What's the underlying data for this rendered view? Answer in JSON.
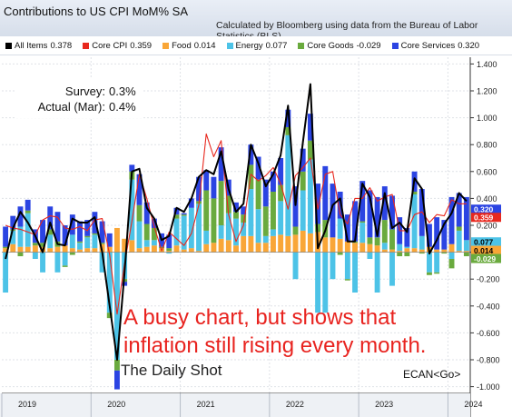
{
  "header": {
    "title": "Contributions to US CPI MoM% SA",
    "source": "Calculated by Bloomberg using data from the Bureau of Labor Statistics (BLS)"
  },
  "legend": [
    {
      "label": "All Items",
      "value": "0.378",
      "color": "#000000"
    },
    {
      "label": "Core CPI",
      "value": "0.359",
      "color": "#e8281e"
    },
    {
      "label": "Food",
      "value": "0.014",
      "color": "#f9a637"
    },
    {
      "label": "Energy",
      "value": "0.077",
      "color": "#4dc3e7"
    },
    {
      "label": "Core Goods",
      "value": "-0.029",
      "color": "#6aaa3e"
    },
    {
      "label": "Core Services",
      "value": "0.320",
      "color": "#2b44e2"
    }
  ],
  "stats_box": {
    "survey_label": "Survey:",
    "survey_value": "0.3%",
    "actual_label": "Actual (Mar):",
    "actual_value": "0.4%"
  },
  "annotation": {
    "line1": "A busy chart, but shows that",
    "line2": "inflation still rising every month."
  },
  "watermark": "The Daily Shot",
  "ecan": "ECAN<Go>",
  "chart_data": {
    "type": "bar",
    "stacked": true,
    "categories": [
      "2019-01",
      "2019-02",
      "2019-03",
      "2019-04",
      "2019-05",
      "2019-06",
      "2019-07",
      "2019-08",
      "2019-09",
      "2019-10",
      "2019-11",
      "2019-12",
      "2020-01",
      "2020-02",
      "2020-03",
      "2020-04",
      "2020-05",
      "2020-06",
      "2020-07",
      "2020-08",
      "2020-09",
      "2020-10",
      "2020-11",
      "2020-12",
      "2021-01",
      "2021-02",
      "2021-03",
      "2021-04",
      "2021-05",
      "2021-06",
      "2021-07",
      "2021-08",
      "2021-09",
      "2021-10",
      "2021-11",
      "2021-12",
      "2022-01",
      "2022-02",
      "2022-03",
      "2022-04",
      "2022-05",
      "2022-06",
      "2022-07",
      "2022-08",
      "2022-09",
      "2022-10",
      "2022-11",
      "2022-12",
      "2023-01",
      "2023-02",
      "2023-03",
      "2023-04",
      "2023-05",
      "2023-06",
      "2023-07",
      "2023-08",
      "2023-09",
      "2023-10",
      "2023-11",
      "2023-12",
      "2024-01",
      "2024-02",
      "2024-03"
    ],
    "x_tick_labels": [
      "2019",
      "2020",
      "2021",
      "2022",
      "2023",
      "2024"
    ],
    "y_ticks": [
      -1.0,
      -0.8,
      -0.6,
      -0.4,
      -0.2,
      0,
      0.2,
      0.4,
      0.6,
      0.8,
      1.0,
      1.2,
      1.4
    ],
    "y_tick_labels": [
      "-1.000",
      "-0.800",
      "-0.600",
      "-0.400",
      "-0.200",
      "0.000",
      "0.200",
      "0.400",
      "0.600",
      "0.800",
      "1.000",
      "1.200",
      "1.400"
    ],
    "ylim": [
      -1.05,
      1.45
    ],
    "series": [
      {
        "name": "Food",
        "color": "#f9a637",
        "values": [
          0.03,
          0.06,
          0.04,
          0.04,
          0.05,
          0.04,
          0.03,
          0.04,
          0.05,
          0.03,
          0.02,
          0.03,
          0.03,
          0.06,
          0.04,
          0.18,
          0.1,
          0.09,
          0.03,
          0.04,
          0.05,
          0.03,
          0.01,
          0.05,
          0.02,
          0.03,
          0.01,
          0.06,
          0.07,
          0.1,
          0.09,
          0.05,
          0.12,
          0.12,
          0.07,
          0.07,
          0.12,
          0.13,
          0.12,
          0.13,
          0.16,
          0.14,
          0.15,
          0.11,
          0.11,
          0.1,
          0.08,
          0.07,
          0.07,
          0.06,
          0.05,
          0.02,
          0.02,
          0.01,
          0.03,
          0.03,
          0.02,
          0.04,
          0.02,
          0.02,
          0.06,
          0.01,
          0.01
        ]
      },
      {
        "name": "Energy",
        "color": "#4dc3e7",
        "values": [
          -0.3,
          0.1,
          0.15,
          0.25,
          -0.05,
          -0.15,
          0.1,
          -0.15,
          -0.1,
          0.1,
          0.05,
          0.08,
          0.1,
          -0.15,
          -0.45,
          -0.8,
          -0.2,
          0.45,
          0.2,
          0.05,
          0.04,
          0.0,
          -0.01,
          0.2,
          0.25,
          0.3,
          0.35,
          0.1,
          0.0,
          0.1,
          0.2,
          0.2,
          0.1,
          0.35,
          0.25,
          0.05,
          0.05,
          0.25,
          0.75,
          -0.2,
          0.3,
          0.55,
          -0.45,
          -0.45,
          -0.2,
          0.15,
          -0.2,
          -0.3,
          0.15,
          -0.05,
          -0.3,
          0.05,
          -0.25,
          0.05,
          0.01,
          0.4,
          0.1,
          -0.15,
          -0.15,
          0.0,
          -0.05,
          0.15,
          0.08
        ]
      },
      {
        "name": "Core Goods",
        "color": "#6aaa3e",
        "values": [
          0.01,
          0.01,
          -0.03,
          0.02,
          0.02,
          0.03,
          0.04,
          0.04,
          -0.01,
          -0.02,
          0.01,
          0.01,
          0.01,
          0.01,
          -0.04,
          -0.08,
          -0.02,
          0.06,
          0.12,
          0.12,
          0.09,
          0.01,
          0.02,
          0.03,
          0.01,
          0.0,
          0.02,
          0.3,
          0.33,
          0.33,
          0.13,
          0.05,
          0.06,
          0.18,
          0.22,
          0.22,
          0.28,
          0.12,
          0.06,
          0.06,
          0.14,
          0.14,
          0.06,
          0.13,
          0.0,
          -0.02,
          -0.01,
          0.01,
          0.01,
          0.05,
          0.06,
          0.17,
          0.15,
          -0.03,
          -0.03,
          0.02,
          -0.01,
          -0.02,
          -0.01,
          -0.01,
          -0.07,
          0.03,
          -0.03
        ]
      },
      {
        "name": "Core Services",
        "color": "#2b44e2",
        "values": [
          0.15,
          0.1,
          0.15,
          0.08,
          0.1,
          0.17,
          0.17,
          0.22,
          0.15,
          0.15,
          0.15,
          0.12,
          0.16,
          0.16,
          0.1,
          -0.14,
          -0.03,
          0.05,
          0.23,
          0.16,
          0.07,
          0.1,
          0.1,
          0.05,
          0.01,
          0.07,
          0.18,
          0.15,
          0.16,
          0.25,
          0.12,
          0.07,
          0.06,
          0.15,
          0.17,
          0.2,
          0.15,
          0.2,
          0.13,
          0.3,
          0.17,
          0.2,
          0.3,
          0.4,
          0.4,
          0.2,
          0.2,
          0.3,
          0.3,
          0.35,
          0.3,
          0.25,
          0.25,
          0.2,
          0.14,
          0.15,
          0.35,
          0.17,
          0.24,
          0.22,
          0.35,
          0.25,
          0.32
        ]
      }
    ],
    "lines": [
      {
        "name": "All Items",
        "color": "#000000",
        "values": [
          -0.05,
          0.18,
          0.3,
          0.22,
          0.12,
          0.0,
          0.22,
          0.06,
          0.05,
          0.25,
          0.22,
          0.22,
          0.26,
          0.0,
          -0.4,
          -0.8,
          -0.16,
          0.6,
          0.62,
          0.33,
          0.25,
          0.09,
          0.12,
          0.33,
          0.3,
          0.4,
          0.56,
          0.61,
          0.58,
          0.75,
          0.47,
          0.3,
          0.36,
          0.8,
          0.66,
          0.49,
          0.58,
          0.72,
          1.09,
          0.35,
          0.82,
          1.25,
          0.03,
          0.16,
          0.35,
          0.4,
          0.08,
          0.08,
          0.51,
          0.41,
          0.12,
          0.44,
          0.18,
          0.22,
          0.15,
          0.55,
          0.47,
          -0.01,
          0.09,
          0.21,
          0.29,
          0.44,
          0.38
        ]
      },
      {
        "name": "Core CPI",
        "color": "#e8281e",
        "values": [
          0.2,
          0.18,
          0.17,
          0.15,
          0.13,
          0.24,
          0.27,
          0.26,
          0.18,
          0.17,
          0.19,
          0.16,
          0.24,
          0.25,
          -0.02,
          -0.46,
          -0.09,
          0.23,
          0.58,
          0.4,
          0.19,
          0.01,
          0.15,
          0.1,
          0.05,
          0.14,
          0.35,
          0.88,
          0.71,
          0.83,
          0.28,
          0.08,
          0.2,
          0.58,
          0.53,
          0.57,
          0.63,
          0.51,
          0.32,
          0.57,
          0.63,
          0.7,
          0.32,
          0.58,
          0.6,
          0.28,
          0.21,
          0.4,
          0.4,
          0.48,
          0.38,
          0.41,
          0.43,
          0.16,
          0.16,
          0.28,
          0.3,
          0.22,
          0.28,
          0.27,
          0.39,
          0.36,
          0.36
        ]
      }
    ],
    "last_value_tags": [
      {
        "label": "0.320",
        "value": 0.32,
        "color": "#2b44e2"
      },
      {
        "label": "0.359",
        "value": 0.359,
        "color": "#e8281e"
      },
      {
        "label": "0.077",
        "value": 0.077,
        "color": "#4dc3e7"
      },
      {
        "label": "0.014",
        "value": 0.014,
        "color": "#f9a637"
      },
      {
        "label": "-0.029",
        "value": -0.029,
        "color": "#6aaa3e"
      }
    ]
  }
}
